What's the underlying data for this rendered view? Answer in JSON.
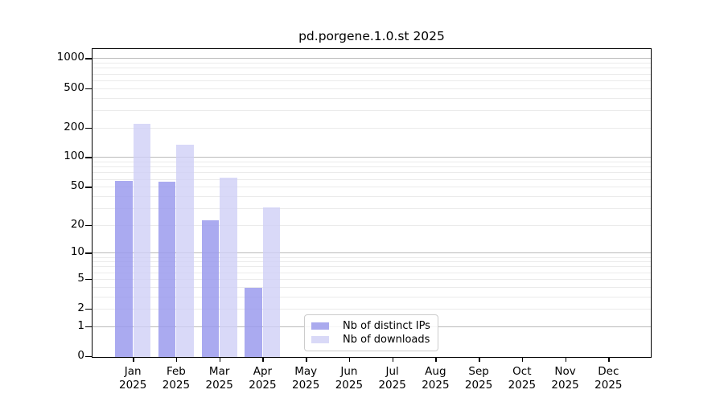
{
  "title": "pd.porgene.1.0.st 2025",
  "legend": {
    "items": [
      {
        "label": "Nb of distinct IPs",
        "color": "#aaaaee"
      },
      {
        "label": "Nb of downloads",
        "color": "#d9d9f7"
      }
    ]
  },
  "colors": {
    "bar_ips": "rgba(155,155,237,0.85)",
    "bar_downloads": "rgba(208,208,246,0.8)",
    "grid_major": "#bbbbbb",
    "grid_minor": "#ebebeb",
    "spine": "#000000",
    "text": "#000000"
  },
  "chart_data": {
    "type": "bar",
    "title": "pd.porgene.1.0.st 2025",
    "categories": [
      "Jan 2025",
      "Feb 2025",
      "Mar 2025",
      "Apr 2025",
      "May 2025",
      "Jun 2025",
      "Jul 2025",
      "Aug 2025",
      "Sep 2025",
      "Oct 2025",
      "Nov 2025",
      "Dec 2025"
    ],
    "series": [
      {
        "name": "Nb of distinct IPs",
        "values": [
          58,
          57,
          23,
          4,
          null,
          null,
          null,
          null,
          null,
          null,
          null,
          null
        ]
      },
      {
        "name": "Nb of downloads",
        "values": [
          223,
          137,
          63,
          31,
          null,
          null,
          null,
          null,
          null,
          null,
          null,
          null
        ]
      }
    ],
    "yscale": "log10(1+y)",
    "y_ticks": [
      0,
      1,
      2,
      5,
      10,
      20,
      50,
      100,
      200,
      500,
      1000
    ],
    "y_major_gridlines": [
      1,
      10,
      100,
      1000
    ],
    "y_minor_gridlines": [
      2,
      3,
      4,
      5,
      6,
      7,
      8,
      9,
      20,
      30,
      40,
      50,
      60,
      70,
      80,
      90,
      200,
      300,
      400,
      500,
      600,
      700,
      800,
      900
    ],
    "ylim": [
      0,
      1300
    ],
    "xlabel": "",
    "ylabel": "",
    "grid": "horizontal",
    "legend_position": "bottom-center"
  }
}
